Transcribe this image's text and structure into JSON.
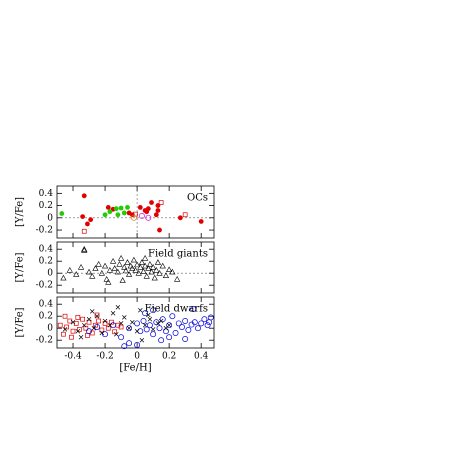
{
  "chart_data": [
    {
      "type": "scatter",
      "annotation": "OCs",
      "ylabel": "[Y/Fe]",
      "xlim": [
        -0.5,
        0.48
      ],
      "ylim": [
        -0.33,
        0.52
      ],
      "xticks": [
        -0.4,
        -0.2,
        0,
        0.2,
        0.4
      ],
      "yticks": [
        0.4,
        0.2,
        0,
        -0.2
      ],
      "reference_lines": {
        "x": 0,
        "y": 0
      },
      "series": [
        {
          "color": "#e00000",
          "marker": "filled-circle",
          "x": [
            -0.33,
            -0.34,
            -0.31,
            -0.29,
            -0.18,
            -0.15,
            -0.05,
            -0.03,
            0.02,
            0.05,
            0.07,
            0.09,
            0.12,
            0.13,
            0.13,
            0.14,
            0.27,
            0.4,
            0.06
          ],
          "values": [
            0.36,
            0.02,
            -0.1,
            -0.03,
            0.17,
            0.14,
            0.08,
            0.05,
            0.17,
            0.12,
            0.15,
            0.25,
            0.05,
            0.12,
            0.2,
            -0.2,
            0.0,
            -0.06,
            0.1
          ]
        },
        {
          "color": "#22cc00",
          "marker": "filled-circle",
          "x": [
            -0.47,
            -0.2,
            -0.17,
            -0.13,
            -0.1,
            -0.08,
            -0.12,
            -0.06
          ],
          "values": [
            0.07,
            0.05,
            0.1,
            0.15,
            0.16,
            0.08,
            0.05,
            0.17
          ]
        },
        {
          "color": "#e00000",
          "marker": "open-square",
          "x": [
            -0.33,
            -0.01,
            0.15,
            0.3
          ],
          "values": [
            -0.22,
            0.06,
            0.25,
            0.05
          ]
        },
        {
          "color": "#e08000",
          "marker": "open-circle",
          "x": [
            -0.02
          ],
          "values": [
            0.0
          ]
        },
        {
          "color": "#e000e0",
          "marker": "open-circle",
          "x": [
            0.03,
            0.07
          ],
          "values": [
            0.03,
            0.0
          ]
        }
      ]
    },
    {
      "type": "scatter",
      "annotation": "Field giants",
      "ylabel": "[Y/Fe]",
      "xlim": [
        -0.5,
        0.48
      ],
      "ylim": [
        -0.33,
        0.52
      ],
      "xticks": [
        -0.4,
        -0.2,
        0,
        0.2,
        0.4
      ],
      "yticks": [
        0.4,
        0.2,
        0,
        -0.2
      ],
      "reference_lines": {
        "y": 0
      },
      "series": [
        {
          "color": "#000000",
          "marker": "open-triangle",
          "x": [
            -0.46,
            -0.42,
            -0.38,
            -0.35,
            -0.33,
            -0.3,
            -0.28,
            -0.26,
            -0.24,
            -0.22,
            -0.2,
            -0.19,
            -0.17,
            -0.15,
            -0.14,
            -0.12,
            -0.11,
            -0.1,
            -0.08,
            -0.07,
            -0.06,
            -0.05,
            -0.04,
            -0.03,
            -0.02,
            -0.01,
            0,
            0.01,
            0.02,
            0.03,
            0.04,
            0.05,
            0.06,
            0.07,
            0.08,
            0.09,
            0.1,
            0.11,
            0.12,
            0.14,
            0.16,
            0.18,
            0.2,
            0.22,
            0.25,
            -0.33,
            -0.18,
            0.05,
            -0.09,
            0.13
          ],
          "values": [
            -0.08,
            0.05,
            -0.02,
            0.1,
            0.38,
            0.02,
            -0.05,
            0.08,
            0.15,
            0.0,
            0.12,
            -0.1,
            0.05,
            0.2,
            0.08,
            0.02,
            0.15,
            0.25,
            0.1,
            0.04,
            0.18,
            -0.02,
            0.12,
            0.08,
            0.22,
            0.05,
            0.14,
            0.0,
            0.1,
            0.18,
            0.03,
            0.12,
            -0.05,
            0.08,
            0.15,
            0.02,
            0.1,
            -0.08,
            0.05,
            0.0,
            0.12,
            -0.04,
            0.06,
            0.02,
            -0.1,
            0.4,
            -0.15,
            0.25,
            -0.12,
            0.18
          ]
        }
      ]
    },
    {
      "type": "scatter",
      "annotation": "Field dwarfs",
      "ylabel": "[Y/Fe]",
      "xlabel": "[Fe/H]",
      "xlim": [
        -0.5,
        0.48
      ],
      "ylim": [
        -0.33,
        0.52
      ],
      "xticks": [
        -0.4,
        -0.2,
        0,
        0.2,
        0.4
      ],
      "yticks": [
        0.4,
        0.2,
        0,
        -0.2
      ],
      "series": [
        {
          "color": "#e00000",
          "marker": "open-square",
          "x": [
            -0.48,
            -0.46,
            -0.44,
            -0.42,
            -0.4,
            -0.38,
            -0.36,
            -0.34,
            -0.32,
            -0.3,
            -0.28,
            -0.26,
            -0.24,
            -0.22,
            -0.2,
            -0.18,
            -0.16,
            -0.14,
            -0.12,
            -0.1,
            -0.45,
            -0.41,
            -0.37,
            -0.31,
            -0.25
          ],
          "values": [
            0.05,
            -0.1,
            0.02,
            0.12,
            -0.05,
            0.08,
            -0.02,
            0.15,
            0.0,
            0.1,
            -0.08,
            0.05,
            0.12,
            -0.03,
            0.08,
            0.0,
            0.1,
            -0.06,
            0.05,
            0.02,
            0.2,
            -0.15,
            0.18,
            -0.12,
            0.22
          ]
        },
        {
          "color": "#0000e0",
          "marker": "open-circle",
          "x": [
            -0.3,
            -0.25,
            -0.2,
            -0.15,
            -0.1,
            -0.05,
            0,
            0.02,
            0.04,
            0.06,
            0.08,
            0.1,
            0.12,
            0.14,
            0.16,
            0.18,
            0.2,
            0.22,
            0.24,
            0.26,
            0.28,
            0.3,
            0.32,
            0.34,
            0.36,
            0.38,
            0.4,
            0.42,
            0.44,
            0.46,
            -0.05,
            0.0,
            0.05,
            0.1,
            0.15,
            0.2,
            0.3,
            0.35,
            0.45,
            -0.08
          ],
          "values": [
            -0.05,
            0.02,
            -0.1,
            0.05,
            -0.15,
            0.0,
            0.08,
            -0.05,
            0.12,
            -0.02,
            0.05,
            -0.1,
            0.1,
            0.0,
            0.15,
            -0.05,
            0.05,
            0.2,
            -0.08,
            0.08,
            0.02,
            0.12,
            -0.03,
            0.06,
            0.1,
            0.0,
            0.08,
            0.15,
            0.05,
            0.18,
            -0.25,
            -0.28,
            0.25,
            0.3,
            -0.2,
            -0.15,
            -0.18,
            0.32,
            0.1,
            -0.3
          ]
        },
        {
          "color": "#000000",
          "marker": "x",
          "x": [
            -0.45,
            -0.4,
            -0.37,
            -0.33,
            -0.3,
            -0.27,
            -0.25,
            -0.22,
            -0.2,
            -0.17,
            -0.15,
            -0.13,
            -0.1,
            -0.08,
            -0.05,
            -0.03,
            0,
            0.02,
            0.05,
            0.08,
            0.1,
            0.13,
            0.15,
            0.18,
            0.2,
            -0.35,
            -0.28,
            -0.12,
            0.03,
            0.07
          ],
          "values": [
            -0.02,
            0.1,
            -0.05,
            0.05,
            0.15,
            0.0,
            0.2,
            -0.08,
            0.12,
            0.05,
            0.25,
            -0.1,
            0.08,
            0.18,
            0.0,
            0.1,
            -0.05,
            0.3,
            0.05,
            0.15,
            -0.02,
            0.08,
            0.12,
            0.0,
            0.05,
            -0.15,
            0.28,
            0.35,
            -0.2,
            0.22
          ]
        }
      ]
    }
  ]
}
